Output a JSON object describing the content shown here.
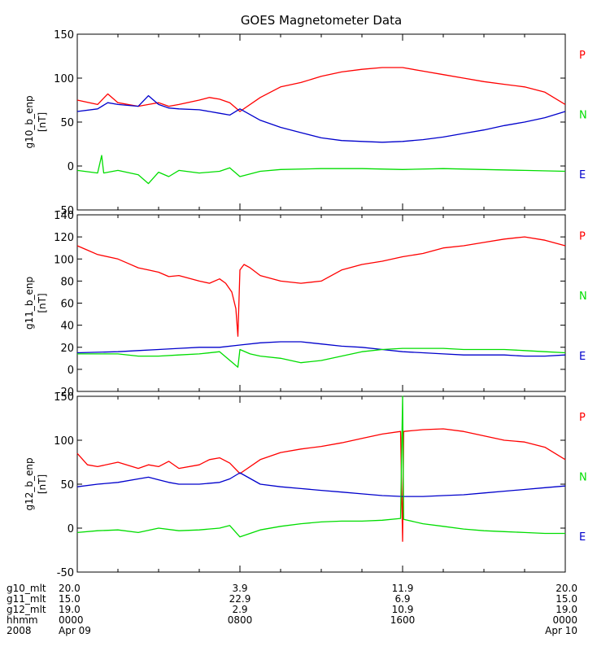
{
  "title": "GOES Magnetometer Data",
  "colors": {
    "P": "#ff0000",
    "N": "#00dd00",
    "E": "#0000cc",
    "axis": "#000000"
  },
  "legend_labels": [
    {
      "key": "P",
      "text": "P",
      "color": "#ff0000"
    },
    {
      "key": "N",
      "text": "N",
      "color": "#00dd00"
    },
    {
      "key": "E",
      "text": "E",
      "color": "#0000cc"
    }
  ],
  "chart_data": [
    {
      "type": "line",
      "ylabel": "g10_b_enp",
      "yunit": "[nT]",
      "ylim": [
        -50,
        150
      ],
      "yticks": [
        -50,
        0,
        50,
        100,
        150
      ],
      "xlim": [
        0,
        24
      ],
      "series": [
        {
          "name": "P",
          "color": "#ff0000",
          "x": [
            0,
            1,
            1.5,
            2,
            3,
            3.5,
            4,
            4.5,
            5,
            6,
            6.5,
            7,
            7.5,
            8,
            9,
            10,
            11,
            12,
            13,
            14,
            15,
            16,
            17,
            18,
            19,
            20,
            21,
            22,
            23,
            24
          ],
          "y": [
            75,
            70,
            82,
            72,
            68,
            70,
            72,
            68,
            70,
            75,
            78,
            76,
            72,
            62,
            78,
            90,
            95,
            102,
            107,
            110,
            112,
            112,
            108,
            104,
            100,
            96,
            93,
            90,
            84,
            70
          ]
        },
        {
          "name": "E",
          "color": "#0000cc",
          "x": [
            0,
            1,
            1.5,
            2,
            3,
            3.5,
            4,
            4.5,
            5,
            6,
            6.5,
            7,
            7.5,
            8,
            9,
            10,
            11,
            12,
            13,
            14,
            15,
            16,
            17,
            18,
            19,
            20,
            21,
            22,
            23,
            24
          ],
          "y": [
            62,
            65,
            72,
            70,
            68,
            80,
            70,
            66,
            65,
            64,
            62,
            60,
            58,
            65,
            52,
            44,
            38,
            32,
            29,
            28,
            27,
            28,
            30,
            33,
            37,
            41,
            46,
            50,
            55,
            62
          ]
        },
        {
          "name": "N",
          "color": "#00dd00",
          "x": [
            0,
            1,
            1.2,
            1.3,
            2,
            3,
            3.5,
            4,
            4.5,
            5,
            6,
            7,
            7.5,
            8,
            9,
            10,
            12,
            14,
            16,
            18,
            20,
            22,
            24
          ],
          "y": [
            -5,
            -8,
            12,
            -8,
            -5,
            -10,
            -20,
            -7,
            -12,
            -5,
            -8,
            -6,
            -2,
            -12,
            -6,
            -4,
            -3,
            -3,
            -4,
            -3,
            -4,
            -5,
            -6
          ]
        }
      ]
    },
    {
      "type": "line",
      "ylabel": "g11_b_enp",
      "yunit": "[nT]",
      "ylim": [
        -20,
        140
      ],
      "yticks": [
        -20,
        0,
        20,
        40,
        60,
        80,
        100,
        120,
        140
      ],
      "xlim": [
        0,
        24
      ],
      "series": [
        {
          "name": "P",
          "color": "#ff0000",
          "x": [
            0,
            0.5,
            1,
            2,
            2.5,
            3,
            3.5,
            4,
            4.5,
            5,
            6,
            6.5,
            7,
            7.3,
            7.6,
            7.8,
            7.9,
            8,
            8.2,
            8.5,
            9,
            10,
            11,
            12,
            13,
            14,
            15,
            16,
            17,
            18,
            19,
            20,
            21,
            22,
            23,
            24
          ],
          "y": [
            112,
            108,
            104,
            100,
            96,
            92,
            90,
            88,
            84,
            85,
            80,
            78,
            82,
            78,
            70,
            55,
            30,
            90,
            95,
            92,
            85,
            80,
            78,
            80,
            90,
            95,
            98,
            102,
            105,
            110,
            112,
            115,
            118,
            120,
            117,
            112
          ]
        },
        {
          "name": "E",
          "color": "#0000cc",
          "x": [
            0,
            2,
            3,
            4,
            5,
            6,
            7,
            8,
            9,
            10,
            11,
            12,
            13,
            14,
            15,
            16,
            17,
            18,
            19,
            20,
            21,
            22,
            23,
            24
          ],
          "y": [
            15,
            16,
            17,
            18,
            19,
            20,
            20,
            22,
            24,
            25,
            25,
            23,
            21,
            20,
            18,
            16,
            15,
            14,
            13,
            13,
            13,
            12,
            12,
            13
          ]
        },
        {
          "name": "N",
          "color": "#00dd00",
          "x": [
            0,
            2,
            3,
            4,
            5,
            6,
            7,
            7.9,
            8,
            8.5,
            9,
            10,
            11,
            12,
            13,
            14,
            15,
            16,
            17,
            18,
            19,
            20,
            21,
            22,
            23,
            24
          ],
          "y": [
            14,
            14,
            12,
            12,
            13,
            14,
            16,
            2,
            18,
            14,
            12,
            10,
            6,
            8,
            12,
            16,
            18,
            19,
            19,
            19,
            18,
            18,
            18,
            17,
            16,
            15
          ]
        }
      ]
    },
    {
      "type": "line",
      "ylabel": "g12_b_enp",
      "yunit": "[nT]",
      "ylim": [
        -50,
        150
      ],
      "yticks": [
        -50,
        0,
        50,
        100,
        150
      ],
      "xlim": [
        0,
        24
      ],
      "series": [
        {
          "name": "P",
          "color": "#ff0000",
          "x": [
            0,
            0.5,
            1,
            2,
            3,
            3.5,
            4,
            4.5,
            5,
            6,
            6.5,
            7,
            7.5,
            8,
            9,
            10,
            11,
            12,
            13,
            14,
            15,
            15.9,
            16,
            16.05,
            17,
            18,
            19,
            20,
            21,
            22,
            23,
            24
          ],
          "y": [
            85,
            72,
            70,
            75,
            68,
            72,
            70,
            76,
            68,
            72,
            78,
            80,
            74,
            62,
            78,
            86,
            90,
            93,
            97,
            102,
            107,
            110,
            -15,
            110,
            112,
            113,
            110,
            105,
            100,
            98,
            92,
            78
          ]
        },
        {
          "name": "E",
          "color": "#0000cc",
          "x": [
            0,
            1,
            2,
            3,
            3.5,
            4,
            4.5,
            5,
            6,
            7,
            7.5,
            8,
            9,
            10,
            11,
            12,
            13,
            14,
            15,
            16,
            17,
            18,
            19,
            20,
            21,
            22,
            23,
            24
          ],
          "y": [
            47,
            50,
            52,
            56,
            58,
            55,
            52,
            50,
            50,
            52,
            56,
            63,
            50,
            47,
            45,
            43,
            41,
            39,
            37,
            36,
            36,
            37,
            38,
            40,
            42,
            44,
            46,
            48
          ]
        },
        {
          "name": "N",
          "color": "#00dd00",
          "x": [
            0,
            1,
            2,
            3,
            4,
            5,
            6,
            7,
            7.5,
            8,
            8.5,
            9,
            10,
            11,
            12,
            13,
            14,
            15,
            15.9,
            16,
            16.05,
            17,
            18,
            19,
            20,
            21,
            22,
            23,
            24
          ],
          "y": [
            -5,
            -3,
            -2,
            -5,
            0,
            -3,
            -2,
            0,
            3,
            -10,
            -6,
            -2,
            2,
            5,
            7,
            8,
            8,
            9,
            11,
            150,
            10,
            5,
            2,
            -1,
            -3,
            -4,
            -5,
            -6,
            -6
          ]
        }
      ]
    }
  ],
  "x_axis_table": {
    "row_labels": [
      "g10_mlt",
      "g11_mlt",
      "g12_mlt",
      "hhmm",
      "2008"
    ],
    "columns": [
      {
        "values": [
          "20.0",
          "15.0",
          "19.0",
          "0000",
          "Apr 09"
        ]
      },
      {
        "values": [
          "3.9",
          "22.9",
          "2.9",
          "0800",
          ""
        ]
      },
      {
        "values": [
          "11.9",
          "6.9",
          "10.9",
          "1600",
          ""
        ]
      },
      {
        "values": [
          "20.0",
          "15.0",
          "19.0",
          "0000",
          "Apr 10"
        ]
      }
    ]
  }
}
